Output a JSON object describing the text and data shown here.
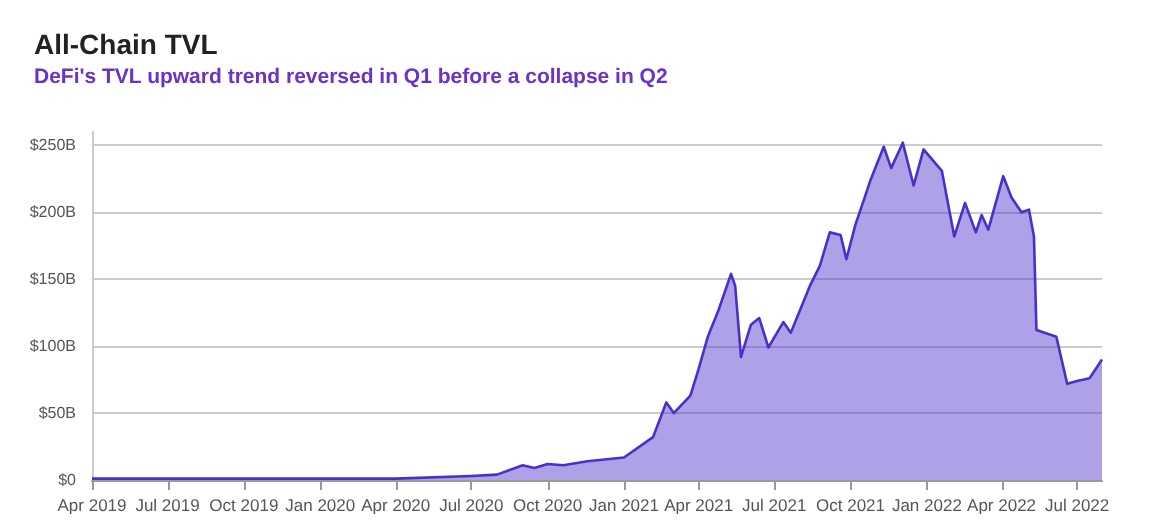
{
  "chart_data": {
    "type": "area",
    "title": "All-Chain TVL",
    "subtitle": "DeFi's TVL upward trend reversed in Q1 before a collapse in Q2",
    "x": [
      "2019-04-01",
      "2019-07-01",
      "2019-10-01",
      "2020-01-01",
      "2020-04-01",
      "2020-07-01",
      "2020-08-01",
      "2020-09-01",
      "2020-09-15",
      "2020-10-01",
      "2020-10-20",
      "2020-11-18",
      "2021-01-01",
      "2021-02-05",
      "2021-02-21",
      "2021-03-02",
      "2021-03-22",
      "2021-04-01",
      "2021-04-12",
      "2021-04-25",
      "2021-05-10",
      "2021-05-15",
      "2021-05-22",
      "2021-06-03",
      "2021-06-13",
      "2021-06-24",
      "2021-07-12",
      "2021-07-21",
      "2021-08-13",
      "2021-08-25",
      "2021-09-06",
      "2021-09-19",
      "2021-09-26",
      "2021-10-07",
      "2021-10-18",
      "2021-10-25",
      "2021-11-10",
      "2021-11-19",
      "2021-12-03",
      "2021-12-16",
      "2021-12-28",
      "2022-01-19",
      "2022-02-03",
      "2022-02-16",
      "2022-03-01",
      "2022-03-08",
      "2022-03-16",
      "2022-04-03",
      "2022-04-13",
      "2022-04-25",
      "2022-05-04",
      "2022-05-10",
      "2022-05-13",
      "2022-06-06",
      "2022-06-19",
      "2022-07-01",
      "2022-07-16",
      "2022-07-31"
    ],
    "series": [
      {
        "color": "#4b2fc9",
        "values": [
          1,
          1,
          1,
          1,
          1,
          3,
          4,
          11,
          9,
          12,
          11,
          14,
          16.8,
          32,
          58,
          50,
          63,
          83,
          107,
          127,
          154,
          145,
          92,
          116,
          121,
          99,
          118,
          110,
          145,
          160,
          185,
          183,
          165,
          191,
          211,
          224,
          249,
          233,
          252,
          220,
          247,
          231,
          182,
          207,
          185,
          198,
          187,
          227,
          211,
          200,
          202,
          182,
          112,
          107,
          72,
          74,
          76,
          90
        ]
      }
    ],
    "xlim": [
      "2019-04-01",
      "2022-07-31"
    ],
    "xticks": [
      {
        "value": "2019-04-01",
        "label": "Apr 2019"
      },
      {
        "value": "2019-07-01",
        "label": "Jul 2019"
      },
      {
        "value": "2019-10-01",
        "label": "Oct 2019"
      },
      {
        "value": "2020-01-01",
        "label": "Jan 2020"
      },
      {
        "value": "2020-04-01",
        "label": "Apr 2020"
      },
      {
        "value": "2020-07-01",
        "label": "Jul 2020"
      },
      {
        "value": "2020-10-01",
        "label": "Oct 2020"
      },
      {
        "value": "2021-01-01",
        "label": "Jan 2021"
      },
      {
        "value": "2021-04-01",
        "label": "Apr 2021"
      },
      {
        "value": "2021-07-01",
        "label": "Jul 2021"
      },
      {
        "value": "2021-10-01",
        "label": "Oct 2021"
      },
      {
        "value": "2022-01-01",
        "label": "Jan 2022"
      },
      {
        "value": "2022-04-01",
        "label": "Apr 2022"
      },
      {
        "value": "2022-07-01",
        "label": "Jul 2022"
      }
    ],
    "ylim": [
      0,
      260
    ],
    "yticks": [
      {
        "value": 0,
        "label": "$0"
      },
      {
        "value": 50,
        "label": "$50B"
      },
      {
        "value": 100,
        "label": "$100B"
      },
      {
        "value": 150,
        "label": "$150B"
      },
      {
        "value": 200,
        "label": "$200B"
      },
      {
        "value": 250,
        "label": "$250B"
      }
    ],
    "grid": "y",
    "marker": "none",
    "line_style": "solid"
  }
}
